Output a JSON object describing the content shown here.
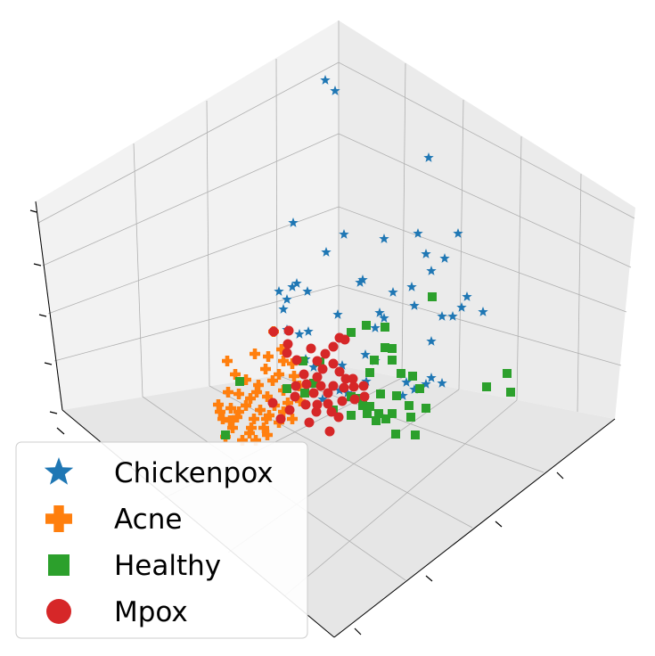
{
  "chart_data": {
    "type": "scatter",
    "projection": "3d",
    "title": "",
    "xlabel": "",
    "ylabel": "",
    "zlabel": "",
    "grid": true,
    "tick_labels_visible": false,
    "legend_position": "bottom-left",
    "series": [
      {
        "name": "Chickenpox",
        "color": "#1f77b4",
        "marker": "star",
        "points": [
          [
            365,
            90
          ],
          [
            376,
            102
          ],
          [
            481,
            177
          ],
          [
            329,
            250
          ],
          [
            386,
            263
          ],
          [
            431,
            268
          ],
          [
            469,
            262
          ],
          [
            514,
            262
          ],
          [
            366,
            283
          ],
          [
            478,
            285
          ],
          [
            499,
            290
          ],
          [
            484,
            304
          ],
          [
            407,
            314
          ],
          [
            404,
            317
          ],
          [
            333,
            318
          ],
          [
            328,
            322
          ],
          [
            313,
            327
          ],
          [
            345,
            327
          ],
          [
            441,
            328
          ],
          [
            462,
            322
          ],
          [
            322,
            336
          ],
          [
            318,
            347
          ],
          [
            426,
            351
          ],
          [
            465,
            343
          ],
          [
            524,
            333
          ],
          [
            518,
            345
          ],
          [
            496,
            355
          ],
          [
            508,
            355
          ],
          [
            542,
            350
          ],
          [
            379,
            353
          ],
          [
            431,
            357
          ],
          [
            322,
            370
          ],
          [
            336,
            375
          ],
          [
            346,
            372
          ],
          [
            421,
            368
          ],
          [
            484,
            383
          ],
          [
            343,
            403
          ],
          [
            352,
            412
          ],
          [
            384,
            410
          ],
          [
            421,
            405
          ],
          [
            410,
            398
          ],
          [
            456,
            429
          ],
          [
            484,
            424
          ],
          [
            496,
            430
          ],
          [
            465,
            437
          ],
          [
            452,
            444
          ],
          [
            478,
            431
          ],
          [
            362,
            448
          ],
          [
            381,
            438
          ],
          [
            411,
            428
          ],
          [
            390,
            441
          ]
        ]
      },
      {
        "name": "Acne",
        "color": "#ff7f0e",
        "marker": "plus",
        "points": [
          [
            307,
            372
          ],
          [
            286,
            397
          ],
          [
            301,
            400
          ],
          [
            255,
            405
          ],
          [
            264,
            420
          ],
          [
            316,
            392
          ],
          [
            318,
            405
          ],
          [
            298,
            414
          ],
          [
            328,
            408
          ],
          [
            330,
            422
          ],
          [
            276,
            426
          ],
          [
            290,
            432
          ],
          [
            256,
            440
          ],
          [
            268,
            442
          ],
          [
            281,
            447
          ],
          [
            300,
            445
          ],
          [
            318,
            438
          ],
          [
            336,
            433
          ],
          [
            245,
            454
          ],
          [
            259,
            458
          ],
          [
            276,
            455
          ],
          [
            292,
            460
          ],
          [
            308,
            455
          ],
          [
            323,
            452
          ],
          [
            337,
            450
          ],
          [
            250,
            470
          ],
          [
            266,
            468
          ],
          [
            285,
            470
          ],
          [
            302,
            466
          ],
          [
            318,
            462
          ],
          [
            261,
            480
          ],
          [
            280,
            486
          ],
          [
            296,
            480
          ],
          [
            313,
            474
          ],
          [
            328,
            470
          ],
          [
            253,
            490
          ],
          [
            272,
            494
          ],
          [
            287,
            494
          ],
          [
            300,
            488
          ],
          [
            268,
            462
          ],
          [
            247,
            462
          ],
          [
            258,
            472
          ],
          [
            313,
            420
          ],
          [
            282,
            480
          ],
          [
            299,
            470
          ],
          [
            288,
            440
          ],
          [
            306,
            427
          ]
        ]
      },
      {
        "name": "Healthy",
        "color": "#2ca02c",
        "marker": "square",
        "points": [
          [
            485,
            333
          ],
          [
            411,
            365
          ],
          [
            432,
            367
          ],
          [
            394,
            373
          ],
          [
            432,
            390
          ],
          [
            440,
            391
          ],
          [
            420,
            404
          ],
          [
            440,
            404
          ],
          [
            415,
            418
          ],
          [
            450,
            419
          ],
          [
            463,
            422
          ],
          [
            569,
            419
          ],
          [
            546,
            434
          ],
          [
            573,
            440
          ],
          [
            471,
            436
          ],
          [
            445,
            444
          ],
          [
            427,
            442
          ],
          [
            394,
            445
          ],
          [
            407,
            455
          ],
          [
            415,
            456
          ],
          [
            459,
            455
          ],
          [
            478,
            458
          ],
          [
            425,
            464
          ],
          [
            440,
            464
          ],
          [
            394,
            466
          ],
          [
            412,
            464
          ],
          [
            461,
            468
          ],
          [
            444,
            487
          ],
          [
            466,
            488
          ],
          [
            422,
            472
          ],
          [
            359,
            406
          ],
          [
            340,
            405
          ],
          [
            352,
            430
          ],
          [
            269,
            428
          ],
          [
            322,
            436
          ],
          [
            253,
            488
          ],
          [
            374,
            460
          ],
          [
            342,
            441
          ],
          [
            433,
            470
          ],
          [
            401,
            447
          ]
        ]
      },
      {
        "name": "Mpox",
        "color": "#d62728",
        "marker": "circle",
        "points": [
          [
            307,
            372
          ],
          [
            324,
            371
          ],
          [
            381,
            379
          ],
          [
            387,
            381
          ],
          [
            374,
            389
          ],
          [
            365,
            397
          ],
          [
            356,
            405
          ],
          [
            323,
            386
          ],
          [
            322,
            396
          ],
          [
            374,
            408
          ],
          [
            381,
            417
          ],
          [
            388,
            425
          ],
          [
            356,
            423
          ],
          [
            341,
            420
          ],
          [
            332,
            433
          ],
          [
            344,
            431
          ],
          [
            352,
            441
          ],
          [
            368,
            441
          ],
          [
            374,
            433
          ],
          [
            386,
            435
          ],
          [
            397,
            434
          ],
          [
            408,
            433
          ],
          [
            409,
            445
          ],
          [
            398,
            448
          ],
          [
            384,
            450
          ],
          [
            368,
            453
          ],
          [
            355,
            462
          ],
          [
            347,
            474
          ],
          [
            372,
            462
          ],
          [
            380,
            468
          ],
          [
            356,
            454
          ],
          [
            343,
            454
          ],
          [
            370,
            484
          ],
          [
            325,
            460
          ],
          [
            315,
            470
          ],
          [
            306,
            452
          ],
          [
            331,
            445
          ],
          [
            360,
            433
          ],
          [
            362,
            414
          ],
          [
            396,
            425
          ],
          [
            349,
            391
          ],
          [
            333,
            404
          ]
        ]
      }
    ]
  }
}
